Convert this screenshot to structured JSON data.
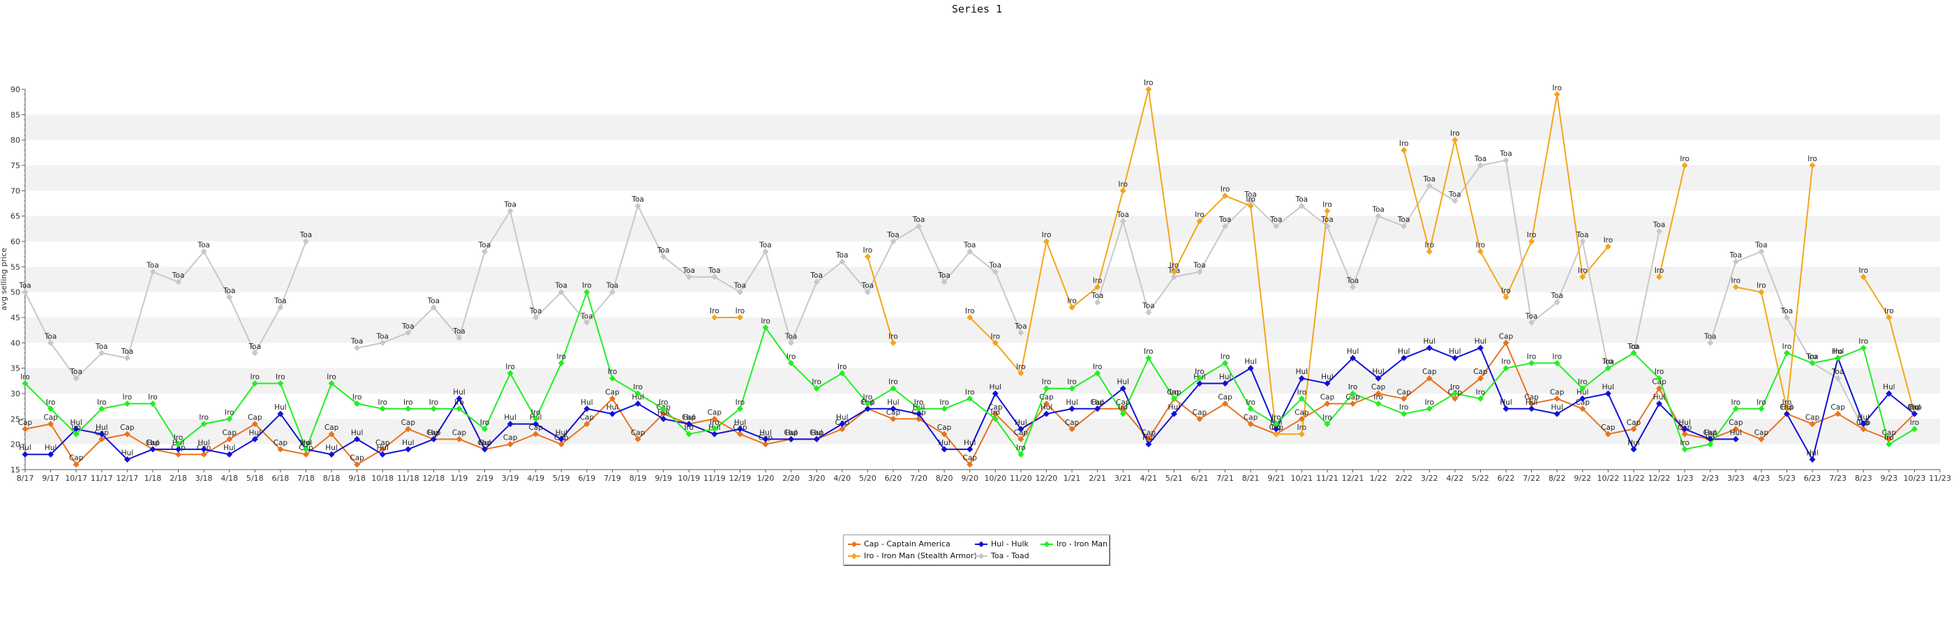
{
  "chart_data": {
    "type": "line",
    "title": "Series 1",
    "xlabel": "",
    "ylabel": "avg selling price",
    "ylim": [
      15,
      90
    ],
    "yticks": [
      15,
      20,
      25,
      30,
      35,
      40,
      45,
      50,
      55,
      60,
      65,
      70,
      75,
      80,
      85,
      90
    ],
    "grid": "horizontal bands",
    "legend_position": "bottom-center",
    "x": [
      "8/17",
      "9/17",
      "10/17",
      "11/17",
      "12/17",
      "1/18",
      "2/18",
      "3/18",
      "4/18",
      "5/18",
      "6/18",
      "7/18",
      "8/18",
      "9/18",
      "10/18",
      "11/18",
      "12/18",
      "1/19",
      "2/19",
      "3/19",
      "4/19",
      "5/19",
      "6/19",
      "7/19",
      "8/19",
      "9/19",
      "10/19",
      "11/19",
      "12/19",
      "1/20",
      "2/20",
      "3/20",
      "4/20",
      "5/20",
      "6/20",
      "7/20",
      "8/20",
      "9/20",
      "10/20",
      "11/20",
      "12/20",
      "1/21",
      "2/21",
      "3/21",
      "4/21",
      "5/21",
      "6/21",
      "7/21",
      "8/21",
      "9/21",
      "10/21",
      "11/21",
      "12/21",
      "1/22",
      "2/22",
      "3/22",
      "4/22",
      "5/22",
      "6/22",
      "7/22",
      "8/22",
      "9/22",
      "10/22",
      "11/22",
      "12/22",
      "1/23",
      "2/23",
      "3/23",
      "4/23",
      "5/23",
      "6/23",
      "7/23",
      "8/23",
      "9/23",
      "10/23",
      "11/23"
    ],
    "series": [
      {
        "name": "Cap - Captain America",
        "short": "Cap",
        "color": "#e8731f",
        "values": [
          23,
          24,
          16,
          21,
          22,
          19,
          18,
          18,
          21,
          24,
          19,
          18,
          22,
          16,
          19,
          23,
          21,
          21,
          19,
          20,
          22,
          20,
          24,
          29,
          21,
          26,
          24,
          25,
          22,
          20,
          21,
          21,
          23,
          27,
          25,
          25,
          22,
          16,
          26,
          21,
          28,
          23,
          27,
          27,
          21,
          29,
          25,
          28,
          24,
          22,
          25,
          28,
          28,
          30,
          29,
          33,
          29,
          33,
          40,
          28,
          29,
          27,
          22,
          23,
          31,
          22,
          21,
          23,
          21,
          26,
          24,
          26,
          23,
          21,
          26,
          null
        ]
      },
      {
        "name": "Iro - Iron Man (Stealth Armor)",
        "short": "Iro",
        "color": "#f5a51a",
        "values": [
          null,
          null,
          null,
          null,
          null,
          null,
          null,
          null,
          null,
          null,
          null,
          null,
          null,
          null,
          null,
          null,
          null,
          null,
          null,
          null,
          null,
          null,
          null,
          null,
          null,
          null,
          null,
          45,
          45,
          null,
          null,
          null,
          null,
          57,
          40,
          null,
          null,
          45,
          40,
          34,
          60,
          47,
          51,
          70,
          90,
          54,
          64,
          69,
          67,
          22,
          22,
          66,
          null,
          null,
          78,
          58,
          80,
          58,
          49,
          60,
          89,
          53,
          59,
          null,
          53,
          75,
          null,
          51,
          50,
          27,
          75,
          null,
          53,
          45,
          26,
          null
        ]
      },
      {
        "name": "Hul - Hulk",
        "short": "Hul",
        "color": "#1010d8",
        "values": [
          18,
          18,
          23,
          22,
          17,
          19,
          19,
          19,
          18,
          21,
          26,
          19,
          18,
          21,
          18,
          19,
          21,
          29,
          19,
          24,
          24,
          21,
          27,
          26,
          28,
          25,
          24,
          22,
          23,
          21,
          21,
          21,
          24,
          27,
          27,
          26,
          19,
          19,
          30,
          23,
          26,
          27,
          27,
          31,
          20,
          26,
          32,
          32,
          35,
          23,
          33,
          32,
          37,
          33,
          37,
          39,
          37,
          39,
          27,
          27,
          26,
          29,
          30,
          19,
          28,
          23,
          21,
          21,
          null,
          26,
          17,
          37,
          24,
          30,
          26,
          null
        ]
      },
      {
        "name": "Iro - Iron Man",
        "short": "Iro",
        "color": "#22ee22",
        "values": [
          32,
          27,
          22,
          27,
          28,
          28,
          20,
          24,
          25,
          32,
          32,
          19,
          32,
          28,
          27,
          27,
          27,
          27,
          23,
          34,
          25,
          36,
          50,
          33,
          30,
          27,
          22,
          23,
          27,
          43,
          36,
          31,
          34,
          28,
          31,
          27,
          27,
          29,
          25,
          18,
          31,
          31,
          34,
          26,
          37,
          29,
          33,
          36,
          27,
          24,
          29,
          24,
          30,
          28,
          26,
          27,
          30,
          29,
          35,
          36,
          36,
          31,
          35,
          38,
          33,
          19,
          20,
          27,
          27,
          38,
          36,
          37,
          39,
          20,
          23,
          null
        ]
      },
      {
        "name": "Toa - Toad",
        "short": "Toa",
        "color": "#c8c8c8",
        "values": [
          50,
          40,
          33,
          38,
          37,
          54,
          52,
          58,
          49,
          38,
          47,
          60,
          null,
          39,
          40,
          42,
          47,
          41,
          58,
          66,
          45,
          50,
          44,
          50,
          67,
          57,
          53,
          53,
          50,
          58,
          40,
          52,
          56,
          50,
          60,
          63,
          52,
          58,
          54,
          42,
          null,
          null,
          48,
          64,
          46,
          53,
          54,
          63,
          68,
          63,
          67,
          63,
          51,
          65,
          63,
          71,
          68,
          75,
          76,
          44,
          48,
          60,
          35,
          38,
          62,
          null,
          40,
          56,
          58,
          45,
          36,
          33,
          23,
          null,
          null,
          null
        ]
      }
    ]
  }
}
